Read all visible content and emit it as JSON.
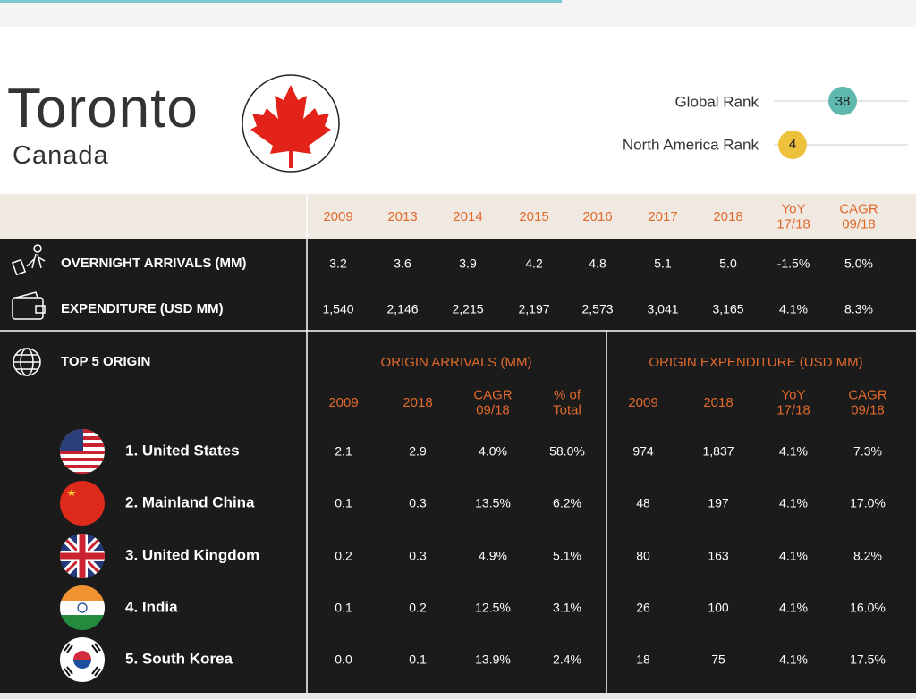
{
  "header": {
    "city": "Toronto",
    "country": "Canada",
    "ranks": [
      {
        "label": "Global Rank",
        "value": "38"
      },
      {
        "label": "North America Rank",
        "value": "4"
      }
    ]
  },
  "summary": {
    "columns": [
      "2009",
      "2013",
      "2014",
      "2015",
      "2016",
      "2017",
      "2018",
      "YoY 17/18",
      "CAGR 09/18"
    ],
    "rows": [
      {
        "label": "OVERNIGHT ARRIVALS (MM)",
        "values": [
          "3.2",
          "3.6",
          "3.9",
          "4.2",
          "4.8",
          "5.1",
          "5.0",
          "-1.5%",
          "5.0%"
        ]
      },
      {
        "label": "EXPENDITURE (USD MM)",
        "values": [
          "1,540",
          "2,146",
          "2,215",
          "2,197",
          "2,573",
          "3,041",
          "3,165",
          "4.1%",
          "8.3%"
        ]
      }
    ]
  },
  "origin": {
    "title": "TOP 5 ORIGIN",
    "arrivals_title": "ORIGIN ARRIVALS (MM)",
    "expenditure_title": "ORIGIN EXPENDITURE (USD MM)",
    "columns": [
      "2009",
      "2018",
      "CAGR 09/18",
      "% of Total",
      "2009",
      "2018",
      "YoY 17/18",
      "CAGR 09/18"
    ],
    "rows": [
      {
        "name": "1. United States",
        "values": [
          "2.1",
          "2.9",
          "4.0%",
          "58.0%",
          "974",
          "1,837",
          "4.1%",
          "7.3%"
        ]
      },
      {
        "name": "2. Mainland China",
        "values": [
          "0.1",
          "0.3",
          "13.5%",
          "6.2%",
          "48",
          "197",
          "4.1%",
          "17.0%"
        ]
      },
      {
        "name": "3. United Kingdom",
        "values": [
          "0.2",
          "0.3",
          "4.9%",
          "5.1%",
          "80",
          "163",
          "4.1%",
          "8.2%"
        ]
      },
      {
        "name": "4. India",
        "values": [
          "0.1",
          "0.2",
          "12.5%",
          "3.1%",
          "26",
          "100",
          "4.1%",
          "16.0%"
        ]
      },
      {
        "name": "5. South Korea",
        "values": [
          "0.0",
          "0.1",
          "13.9%",
          "2.4%",
          "18",
          "75",
          "4.1%",
          "17.5%"
        ]
      }
    ]
  }
}
